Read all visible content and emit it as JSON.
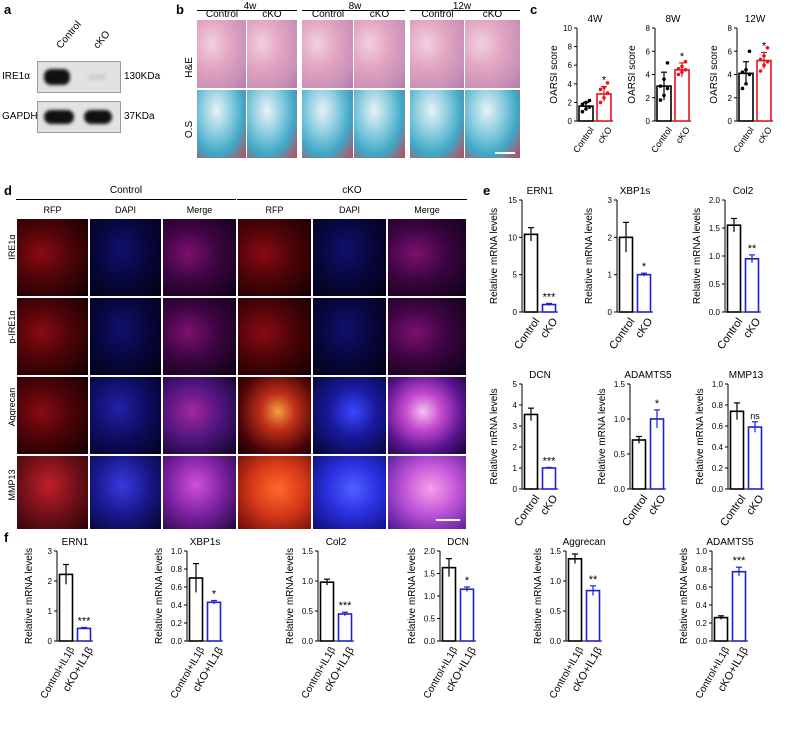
{
  "panel_labels": {
    "a": "a",
    "b": "b",
    "c": "c",
    "d": "d",
    "e": "e",
    "f": "f"
  },
  "panel_a": {
    "columns": [
      "Control",
      "cKO"
    ],
    "rows": [
      {
        "label": "IRE1α",
        "size": "130KDa"
      },
      {
        "label": "GAPDH",
        "size": "37KDa"
      }
    ]
  },
  "panel_b": {
    "timepoints": [
      "4w",
      "8w",
      "12w"
    ],
    "groups": [
      "Control",
      "cKO"
    ],
    "stains": [
      "H&E",
      "O.S"
    ]
  },
  "panel_d": {
    "groups": [
      "Control",
      "cKO"
    ],
    "channels": [
      "RFP",
      "DAPI",
      "Merge"
    ],
    "markers": [
      "IRE1α",
      "p-IRE1α",
      "Aggrecan",
      "MMP13"
    ]
  },
  "colors": {
    "control": "#000000",
    "cko_score": "#e8141b",
    "cko_mrna": "#1f1fd6"
  },
  "chart_data": [
    {
      "id": "c-4w",
      "type": "bar",
      "title": "4W",
      "ylabel": "OARSI score",
      "categories": [
        "Control",
        "cKO"
      ],
      "values": [
        1.6,
        2.9
      ],
      "errors": [
        0.4,
        0.8
      ],
      "ylim": [
        0,
        10
      ],
      "yticks": [
        0,
        2,
        4,
        6,
        8,
        10
      ],
      "sig": [
        "",
        "*"
      ],
      "points": [
        [
          1.0,
          1.3,
          1.5,
          1.8,
          2.0,
          2.2
        ],
        [
          2.0,
          2.5,
          3.0,
          3.4,
          3.6,
          4.1
        ]
      ]
    },
    {
      "id": "c-8w",
      "type": "bar",
      "title": "8W",
      "ylabel": "OARSI score",
      "categories": [
        "Control",
        "cKO"
      ],
      "values": [
        3.0,
        4.4
      ],
      "errors": [
        1.2,
        0.6
      ],
      "ylim": [
        0,
        8
      ],
      "yticks": [
        0,
        2,
        4,
        6,
        8
      ],
      "sig": [
        "",
        "*"
      ],
      "points": [
        [
          1.8,
          2.2,
          2.8,
          3.0,
          3.6,
          5.0
        ],
        [
          4.0,
          4.2,
          4.4,
          4.5,
          4.7,
          5.1
        ]
      ]
    },
    {
      "id": "c-12w",
      "type": "bar",
      "title": "12W",
      "ylabel": "OARSI score",
      "categories": [
        "Control",
        "cKO"
      ],
      "values": [
        4.1,
        5.2
      ],
      "errors": [
        1.0,
        0.7
      ],
      "ylim": [
        0,
        8
      ],
      "yticks": [
        0,
        2,
        4,
        6,
        8
      ],
      "sig": [
        "",
        "*"
      ],
      "points": [
        [
          2.8,
          3.2,
          4.0,
          4.2,
          4.4,
          6.0
        ],
        [
          4.3,
          4.8,
          5.1,
          5.3,
          5.6,
          6.3
        ]
      ]
    },
    {
      "id": "e-ern1",
      "type": "bar",
      "title": "ERN1",
      "ylabel": "Relative mRNA levels",
      "categories": [
        "Control",
        "cKO"
      ],
      "values": [
        10.4,
        1.0
      ],
      "errors": [
        0.9,
        0.15
      ],
      "ylim": [
        0,
        15
      ],
      "yticks": [
        0,
        5,
        10,
        15
      ],
      "sig": [
        "",
        "***"
      ]
    },
    {
      "id": "e-xbp1s",
      "type": "bar",
      "title": "XBP1s",
      "ylabel": "Relative mRNA levels",
      "categories": [
        "Control",
        "cKO"
      ],
      "values": [
        2.0,
        1.0
      ],
      "errors": [
        0.4,
        0.04
      ],
      "ylim": [
        0,
        3
      ],
      "yticks": [
        0,
        1,
        2,
        3
      ],
      "sig": [
        "",
        "*"
      ]
    },
    {
      "id": "e-col2",
      "type": "bar",
      "title": "Col2",
      "ylabel": "Relative mRNA levels",
      "categories": [
        "Control",
        "cKO"
      ],
      "values": [
        1.55,
        0.95
      ],
      "errors": [
        0.12,
        0.07
      ],
      "ylim": [
        0,
        2.0
      ],
      "yticks": [
        0,
        0.5,
        1.0,
        1.5,
        2.0
      ],
      "sig": [
        "",
        "**"
      ]
    },
    {
      "id": "e-dcn",
      "type": "bar",
      "title": "DCN",
      "ylabel": "Relative mRNA levels",
      "categories": [
        "Control",
        "cKO"
      ],
      "values": [
        3.55,
        1.0
      ],
      "errors": [
        0.3,
        0.03
      ],
      "ylim": [
        0,
        5
      ],
      "yticks": [
        0,
        1,
        2,
        3,
        4,
        5
      ],
      "sig": [
        "",
        "***"
      ]
    },
    {
      "id": "e-adamts5",
      "type": "bar",
      "title": "ADAMTS5",
      "ylabel": "Relative mRNA levels",
      "categories": [
        "Control",
        "cKO"
      ],
      "values": [
        0.7,
        1.0
      ],
      "errors": [
        0.05,
        0.13
      ],
      "ylim": [
        0,
        1.5
      ],
      "yticks": [
        0,
        0.5,
        1.0,
        1.5
      ],
      "sig": [
        "",
        "*"
      ]
    },
    {
      "id": "e-mmp13",
      "type": "bar",
      "title": "MMP13",
      "ylabel": "Relative mRNA levels",
      "categories": [
        "Control",
        "cKO"
      ],
      "values": [
        0.74,
        0.59
      ],
      "errors": [
        0.08,
        0.05
      ],
      "ylim": [
        0,
        1.0
      ],
      "yticks": [
        0,
        0.2,
        0.4,
        0.6,
        0.8,
        1.0
      ],
      "sig": [
        "",
        "ns"
      ]
    },
    {
      "id": "f-ern1",
      "type": "bar",
      "title": "ERN1",
      "ylabel": "Relative mRNA levels",
      "categories": [
        "Control+IL1β",
        "cKO+IL1β"
      ],
      "values": [
        2.22,
        0.42
      ],
      "errors": [
        0.33,
        0.03
      ],
      "ylim": [
        0,
        3
      ],
      "yticks": [
        0,
        1,
        2,
        3
      ],
      "sig": [
        "",
        "***"
      ]
    },
    {
      "id": "f-xbp1s",
      "type": "bar",
      "title": "XBP1s",
      "ylabel": "Relative mRNA levels",
      "categories": [
        "Control+IL1β",
        "cKO+IL1β"
      ],
      "values": [
        0.7,
        0.43
      ],
      "errors": [
        0.16,
        0.02
      ],
      "ylim": [
        0,
        1.0
      ],
      "yticks": [
        0,
        0.2,
        0.4,
        0.6,
        0.8,
        1.0
      ],
      "sig": [
        "",
        "*"
      ]
    },
    {
      "id": "f-col2",
      "type": "bar",
      "title": "Col2",
      "ylabel": "Relative mRNA levels",
      "categories": [
        "Control+IL1β",
        "cKO+IL1β"
      ],
      "values": [
        0.98,
        0.45
      ],
      "errors": [
        0.05,
        0.03
      ],
      "ylim": [
        0,
        1.5
      ],
      "yticks": [
        0,
        0.5,
        1.0,
        1.5
      ],
      "sig": [
        "",
        "***"
      ]
    },
    {
      "id": "f-dcn",
      "type": "bar",
      "title": "DCN",
      "ylabel": "Relative mRNA levels",
      "categories": [
        "Control+IL1β",
        "cKO+IL1β"
      ],
      "values": [
        1.63,
        1.15
      ],
      "errors": [
        0.2,
        0.05
      ],
      "ylim": [
        0,
        2.0
      ],
      "yticks": [
        0,
        0.5,
        1.0,
        1.5,
        2.0
      ],
      "sig": [
        "",
        "*"
      ]
    },
    {
      "id": "f-aggrecan",
      "type": "bar",
      "title": "Aggrecan",
      "ylabel": "Relative mRNA levels",
      "categories": [
        "Control+IL1β",
        "cKO+IL1β"
      ],
      "values": [
        1.37,
        0.84
      ],
      "errors": [
        0.08,
        0.08
      ],
      "ylim": [
        0,
        1.5
      ],
      "yticks": [
        0,
        0.5,
        1.0,
        1.5
      ],
      "sig": [
        "",
        "**"
      ]
    },
    {
      "id": "f-adamts5",
      "type": "bar",
      "title": "ADAMTS5",
      "ylabel": "Relative mRNA levels",
      "categories": [
        "Control+IL1β",
        "cKO+IL1β"
      ],
      "values": [
        0.26,
        0.77
      ],
      "errors": [
        0.02,
        0.05
      ],
      "ylim": [
        0,
        1.0
      ],
      "yticks": [
        0,
        0.2,
        0.4,
        0.6,
        0.8,
        1.0
      ],
      "sig": [
        "",
        "***"
      ]
    }
  ]
}
